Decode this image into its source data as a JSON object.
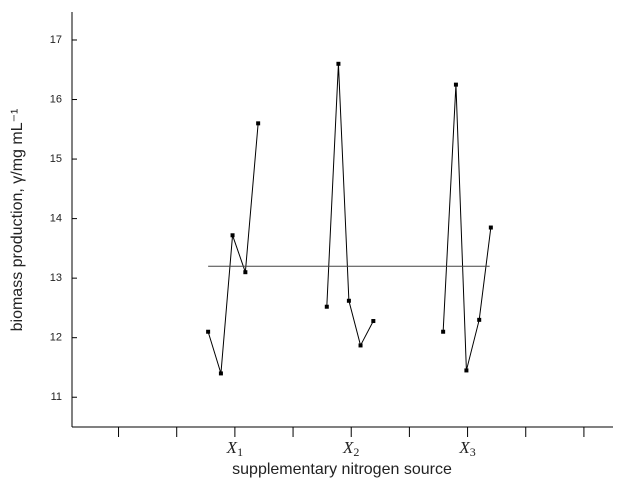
{
  "chart_data": {
    "type": "line",
    "xlabel": "supplementary nitrogen source",
    "ylabel": "biomass production, γ/mg mL⁻¹",
    "xlim": [
      -0.4,
      4.25
    ],
    "ylim": [
      10.5,
      17.47
    ],
    "xticks": [
      {
        "value": 1,
        "label": "X1"
      },
      {
        "value": 2,
        "label": "X2"
      },
      {
        "value": 3,
        "label": "X3"
      }
    ],
    "x_minor_ticks": [
      0,
      0.5,
      1.5,
      2.5,
      3.5,
      4
    ],
    "yticks": [
      11,
      12,
      13,
      14,
      15,
      16,
      17
    ],
    "series": [
      {
        "color": "#000000",
        "x": [
          0.77,
          0.88,
          0.98,
          1.09,
          1.2
        ],
        "values": [
          12.1,
          11.4,
          13.72,
          13.1,
          15.6
        ]
      },
      {
        "color": "#000000",
        "x": [
          1.79,
          1.89,
          1.98,
          2.08,
          2.19
        ],
        "values": [
          12.52,
          16.6,
          12.62,
          11.87,
          12.28
        ]
      },
      {
        "color": "#000000",
        "x": [
          2.79,
          2.9,
          2.99,
          3.1,
          3.2
        ],
        "values": [
          12.1,
          16.25,
          11.45,
          12.3,
          13.85
        ]
      },
      {
        "color": "#444444",
        "x": [
          0.77,
          3.19
        ],
        "values": [
          13.2,
          13.2
        ]
      }
    ]
  }
}
